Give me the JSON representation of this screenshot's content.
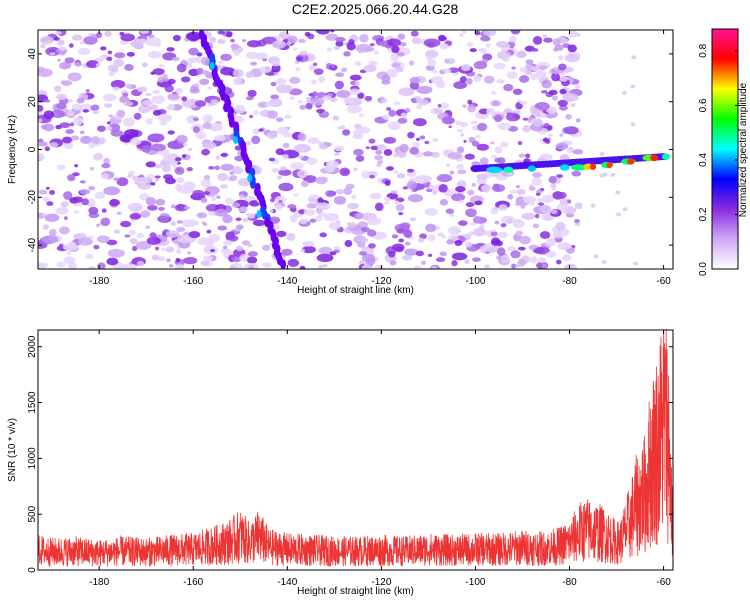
{
  "title": "C2E2.2025.066.20.44.G28",
  "chart_data": [
    {
      "type": "heatmap",
      "xlabel": "Height of straight line (km)",
      "ylabel": "Frequency (Hz)",
      "xlim": [
        -193,
        -58
      ],
      "ylim": [
        -50,
        50
      ],
      "xticks": [
        -180,
        -160,
        -140,
        -120,
        -100,
        -80,
        -60
      ],
      "yticks": [
        -40,
        -20,
        0,
        20,
        40
      ],
      "colorbar": {
        "label": "Normalized spectral amplitude",
        "range": [
          0,
          0.88
        ],
        "ticks": [
          0.0,
          0.2,
          0.4,
          0.6,
          0.8
        ],
        "colors": [
          "#ffffff",
          "#cfa8f5",
          "#8a2be2",
          "#0000ff",
          "#00ffff",
          "#00ff00",
          "#ffff00",
          "#ff0000",
          "#ff1493"
        ]
      },
      "features": [
        {
          "segment": [
            [
              -158,
              48
            ],
            [
              -141,
              -48
            ]
          ],
          "peak_amplitude": 0.35
        },
        {
          "segment": [
            [
              -100,
              -8
            ],
            [
              -60,
              -3
            ]
          ],
          "peak_amplitude": 0.8
        }
      ],
      "noise_cutoff_x": -80
    },
    {
      "type": "line",
      "xlabel": "Height of straight line (km)",
      "ylabel": "SNR (10 * v/v)",
      "xlim": [
        -193,
        -58
      ],
      "ylim": [
        0,
        2150
      ],
      "xticks": [
        -180,
        -160,
        -140,
        -120,
        -100,
        -80,
        -60
      ],
      "yticks": [
        0,
        500,
        1000,
        1500,
        2000
      ],
      "color": "#ee3333",
      "series": [
        {
          "x": [
            -193,
            -190,
            -185,
            -180,
            -175,
            -170,
            -165,
            -160,
            -155,
            -152,
            -150,
            -148,
            -146,
            -144,
            -140,
            -135,
            -130,
            -125,
            -120,
            -115,
            -110,
            -105,
            -100,
            -95,
            -90,
            -85,
            -82,
            -80,
            -78,
            -76,
            -74,
            -72,
            -70,
            -69,
            -68,
            -67,
            -66,
            -65,
            -64,
            -63,
            -62,
            -61,
            -60,
            -59,
            -58
          ],
          "values": [
            220,
            200,
            210,
            190,
            210,
            200,
            220,
            230,
            280,
            320,
            380,
            300,
            380,
            260,
            230,
            220,
            210,
            210,
            220,
            210,
            230,
            220,
            230,
            230,
            250,
            240,
            270,
            310,
            420,
            450,
            420,
            380,
            300,
            330,
            450,
            550,
            700,
            780,
            850,
            1100,
            1300,
            1400,
            1700,
            1500,
            400
          ]
        }
      ]
    }
  ]
}
